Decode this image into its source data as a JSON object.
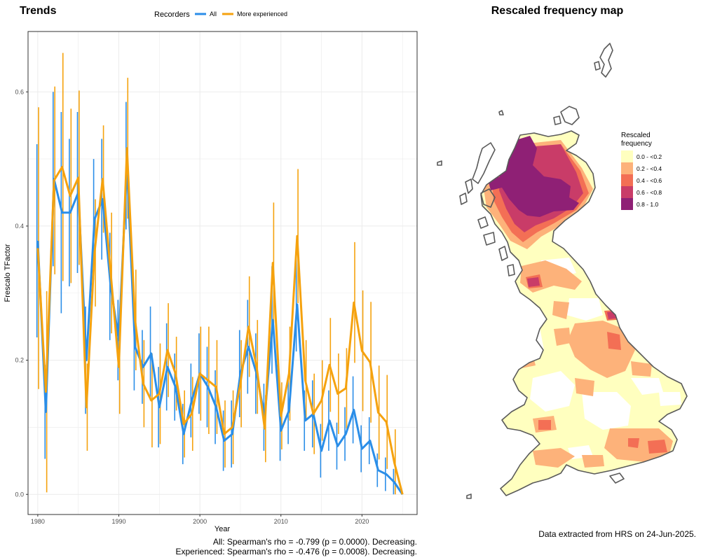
{
  "trends": {
    "title": "Trends",
    "legend_title": "Recorders",
    "stat_all": "All: Spearman's rho = -0.799 (p = 0.0000). Decreasing.",
    "stat_experienced": "Experienced: Spearman's rho = -0.476 (p = 0.0008). Decreasing."
  },
  "map": {
    "title": "Rescaled frequency map",
    "legend_title_line1": "Rescaled",
    "legend_title_line2": "frequency",
    "legend_items": [
      {
        "label": "0.0 - <0.2",
        "color": "#ffffbf"
      },
      {
        "label": "0.2 - <0.4",
        "color": "#fdb27a"
      },
      {
        "label": "0.4 - <0.6",
        "color": "#f36f55"
      },
      {
        "label": "0.6 - <0.8",
        "color": "#c93c68"
      },
      {
        "label": "0.8 - 1.0",
        "color": "#8f2075"
      }
    ],
    "outline_color": "#5a5a5a",
    "footer": "Data extracted from HRS on 24-Jun-2025."
  },
  "chart_data": [
    {
      "type": "line",
      "title": "Trends",
      "xlabel": "Year",
      "ylabel": "Frescalo TFactor",
      "xlim": [
        1978.8,
        2026.8
      ],
      "ylim": [
        -0.03,
        0.69
      ],
      "x_ticks": [
        1980,
        1990,
        2000,
        2010,
        2020
      ],
      "y_ticks": [
        0.0,
        0.2,
        0.4,
        0.6
      ],
      "y_tick_labels": [
        "0.0",
        "0.2",
        "0.4",
        "0.6"
      ],
      "grid": true,
      "legend_position": "top",
      "series": [
        {
          "name": "All",
          "color": "#2b8ee8",
          "x": [
            1980,
            1981,
            1982,
            1983,
            1984,
            1985,
            1986,
            1987,
            1988,
            1989,
            1990,
            1991,
            1992,
            1993,
            1994,
            1995,
            1996,
            1997,
            1998,
            1999,
            2000,
            2001,
            2002,
            2003,
            2004,
            2005,
            2006,
            2007,
            2008,
            2009,
            2010,
            2011,
            2012,
            2013,
            2014,
            2015,
            2016,
            2017,
            2018,
            2019,
            2020,
            2021,
            2022,
            2023,
            2024,
            2025
          ],
          "y": [
            0.378,
            0.123,
            0.47,
            0.42,
            0.42,
            0.45,
            0.2,
            0.41,
            0.44,
            0.31,
            0.23,
            0.49,
            0.22,
            0.19,
            0.21,
            0.13,
            0.19,
            0.16,
            0.09,
            0.14,
            0.18,
            0.16,
            0.13,
            0.08,
            0.09,
            0.18,
            0.22,
            0.18,
            0.115,
            0.26,
            0.095,
            0.125,
            0.283,
            0.11,
            0.12,
            0.065,
            0.11,
            0.072,
            0.09,
            0.126,
            0.068,
            0.08,
            0.036,
            0.03,
            0.018,
            0.0
          ],
          "err": [
            0.144,
            0.07,
            0.13,
            0.15,
            0.11,
            0.12,
            0.08,
            0.09,
            0.09,
            0.08,
            0.06,
            0.095,
            0.065,
            0.055,
            0.07,
            0.06,
            0.065,
            0.05,
            0.045,
            0.055,
            0.06,
            0.06,
            0.055,
            0.045,
            0.05,
            0.065,
            0.07,
            0.06,
            0.05,
            0.08,
            0.045,
            0.05,
            0.07,
            0.045,
            0.05,
            0.04,
            0.045,
            0.035,
            0.04,
            0.05,
            0.035,
            0.035,
            0.025,
            0.025,
            0.02,
            0.0
          ]
        },
        {
          "name": "More experienced",
          "color": "#f5a20e",
          "x": [
            1980,
            1981,
            1982,
            1983,
            1984,
            1985,
            1986,
            1987,
            1988,
            1989,
            1990,
            1991,
            1992,
            1993,
            1994,
            1995,
            1996,
            1997,
            1998,
            1999,
            2000,
            2001,
            2002,
            2003,
            2004,
            2005,
            2006,
            2007,
            2008,
            2009,
            2010,
            2011,
            2012,
            2013,
            2014,
            2015,
            2016,
            2017,
            2018,
            2019,
            2020,
            2021,
            2022,
            2023,
            2024,
            2025
          ],
          "y": [
            0.367,
            0.153,
            0.468,
            0.488,
            0.445,
            0.472,
            0.13,
            0.36,
            0.47,
            0.33,
            0.19,
            0.516,
            0.26,
            0.165,
            0.14,
            0.15,
            0.215,
            0.18,
            0.105,
            0.12,
            0.18,
            0.17,
            0.16,
            0.09,
            0.1,
            0.165,
            0.25,
            0.19,
            0.098,
            0.345,
            0.117,
            0.18,
            0.385,
            0.17,
            0.12,
            0.14,
            0.193,
            0.15,
            0.158,
            0.286,
            0.214,
            0.197,
            0.122,
            0.108,
            0.047,
            0.0
          ],
          "err": [
            0.21,
            0.15,
            0.14,
            0.17,
            0.13,
            0.13,
            0.065,
            0.08,
            0.08,
            0.09,
            0.07,
            0.105,
            0.075,
            0.065,
            0.07,
            0.075,
            0.07,
            0.055,
            0.05,
            0.055,
            0.07,
            0.08,
            0.07,
            0.05,
            0.055,
            0.065,
            0.075,
            0.07,
            0.05,
            0.09,
            0.05,
            0.07,
            0.1,
            0.06,
            0.06,
            0.06,
            0.07,
            0.06,
            0.06,
            0.09,
            0.09,
            0.09,
            0.07,
            0.07,
            0.05,
            0.0
          ]
        }
      ],
      "annotations": [
        "All: Spearman's rho = -0.799 (p = 0.0000). Decreasing.",
        "Experienced: Spearman's rho = -0.476 (p = 0.0008). Decreasing."
      ]
    },
    {
      "type": "heatmap",
      "title": "Rescaled frequency map",
      "legend_title": "Rescaled frequency",
      "legend_position": "right",
      "classes": [
        "0.0 - <0.2",
        "0.2 - <0.4",
        "0.4 - <0.6",
        "0.6 - <0.8",
        "0.8 - 1.0"
      ]
    }
  ]
}
